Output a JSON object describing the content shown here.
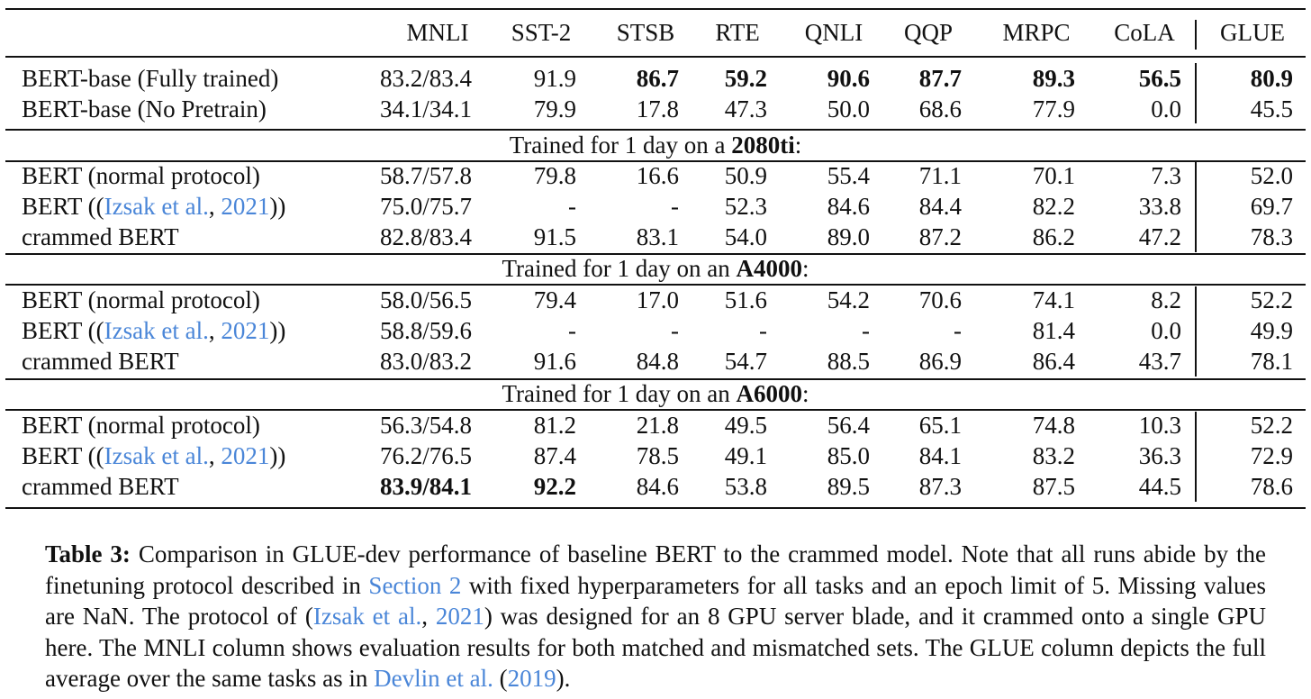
{
  "table": {
    "columns": [
      "MNLI",
      "SST-2",
      "STSB",
      "RTE",
      "QNLI",
      "QQP",
      "MRPC",
      "CoLA",
      "GLUE"
    ],
    "baseline_rows": [
      {
        "model": "BERT-base (Fully trained)",
        "values": [
          "83.2/83.4",
          "91.9",
          "86.7",
          "59.2",
          "90.6",
          "87.7",
          "89.3",
          "56.5",
          "80.9"
        ],
        "bold": [
          false,
          false,
          true,
          true,
          true,
          true,
          true,
          true,
          true
        ]
      },
      {
        "model": "BERT-base (No Pretrain)",
        "values": [
          "34.1/34.1",
          "79.9",
          "17.8",
          "47.3",
          "50.0",
          "68.6",
          "77.9",
          "0.0",
          "45.5"
        ],
        "bold": [
          false,
          false,
          false,
          false,
          false,
          false,
          false,
          false,
          false
        ]
      }
    ],
    "sections": [
      {
        "header_prefix": "Trained for 1 day on a ",
        "gpu": "2080ti",
        "header_suffix": ":",
        "rows": [
          {
            "model": "BERT (normal protocol)",
            "values": [
              "58.7/57.8",
              "79.8",
              "16.6",
              "50.9",
              "55.4",
              "71.1",
              "70.1",
              "7.3",
              "52.0"
            ],
            "bold": [
              false,
              false,
              false,
              false,
              false,
              false,
              false,
              false,
              false
            ]
          },
          {
            "model_prefix": "BERT ((",
            "model_cite_author": "Izsak et al.",
            "model_cite_sep": ", ",
            "model_cite_year": "2021",
            "model_suffix": "))",
            "values": [
              "75.0/75.7",
              "-",
              "-",
              "52.3",
              "84.6",
              "84.4",
              "82.2",
              "33.8",
              "69.7"
            ],
            "bold": [
              false,
              false,
              false,
              false,
              false,
              false,
              false,
              false,
              false
            ]
          },
          {
            "model": "crammed BERT",
            "values": [
              "82.8/83.4",
              "91.5",
              "83.1",
              "54.0",
              "89.0",
              "87.2",
              "86.2",
              "47.2",
              "78.3"
            ],
            "bold": [
              false,
              false,
              false,
              false,
              false,
              false,
              false,
              false,
              false
            ]
          }
        ]
      },
      {
        "header_prefix": "Trained for 1 day on an ",
        "gpu": "A4000",
        "header_suffix": ":",
        "rows": [
          {
            "model": "BERT (normal protocol)",
            "values": [
              "58.0/56.5",
              "79.4",
              "17.0",
              "51.6",
              "54.2",
              "70.6",
              "74.1",
              "8.2",
              "52.2"
            ],
            "bold": [
              false,
              false,
              false,
              false,
              false,
              false,
              false,
              false,
              false
            ]
          },
          {
            "model_prefix": "BERT ((",
            "model_cite_author": "Izsak et al.",
            "model_cite_sep": ", ",
            "model_cite_year": "2021",
            "model_suffix": "))",
            "values": [
              "58.8/59.6",
              "-",
              "-",
              "-",
              "-",
              "-",
              "81.4",
              "0.0",
              "49.9"
            ],
            "bold": [
              false,
              false,
              false,
              false,
              false,
              false,
              false,
              false,
              false
            ]
          },
          {
            "model": "crammed BERT",
            "values": [
              "83.0/83.2",
              "91.6",
              "84.8",
              "54.7",
              "88.5",
              "86.9",
              "86.4",
              "43.7",
              "78.1"
            ],
            "bold": [
              false,
              false,
              false,
              false,
              false,
              false,
              false,
              false,
              false
            ]
          }
        ]
      },
      {
        "header_prefix": "Trained for 1 day on an ",
        "gpu": "A6000",
        "header_suffix": ":",
        "rows": [
          {
            "model": "BERT (normal protocol)",
            "values": [
              "56.3/54.8",
              "81.2",
              "21.8",
              "49.5",
              "56.4",
              "65.1",
              "74.8",
              "10.3",
              "52.2"
            ],
            "bold": [
              false,
              false,
              false,
              false,
              false,
              false,
              false,
              false,
              false
            ]
          },
          {
            "model_prefix": "BERT ((",
            "model_cite_author": "Izsak et al.",
            "model_cite_sep": ", ",
            "model_cite_year": "2021",
            "model_suffix": "))",
            "values": [
              "76.2/76.5",
              "87.4",
              "78.5",
              "49.1",
              "85.0",
              "84.1",
              "83.2",
              "36.3",
              "72.9"
            ],
            "bold": [
              false,
              false,
              false,
              false,
              false,
              false,
              false,
              false,
              false
            ]
          },
          {
            "model": "crammed BERT",
            "values": [
              "83.9/84.1",
              "92.2",
              "84.6",
              "53.8",
              "89.5",
              "87.3",
              "87.5",
              "44.5",
              "78.6"
            ],
            "bold": [
              true,
              true,
              false,
              false,
              false,
              false,
              false,
              false,
              false
            ]
          }
        ]
      }
    ]
  },
  "caption": {
    "label": "Table 3:",
    "part1": " Comparison in GLUE-dev performance of baseline BERT to the crammed model. Note that all runs abide by the finetuning protocol described in ",
    "section_link": "Section 2",
    "part2": " with fixed hyperparameters for all tasks and an epoch limit of 5.  Missing values are NaN. The protocol of (",
    "cite1_author": "Izsak et al.",
    "cite1_sep": ", ",
    "cite1_year": "2021",
    "part3": ") was designed for an 8 GPU server blade, and it crammed onto a single GPU here. The MNLI column shows evaluation results for both matched and mismatched sets. The GLUE column depicts the full average over the same tasks as in ",
    "cite2_author": "Devlin et al.",
    "cite2_mid": " (",
    "cite2_year": "2019",
    "part4": ")."
  },
  "colors": {
    "link": "#4a86d8",
    "text": "#111111"
  }
}
